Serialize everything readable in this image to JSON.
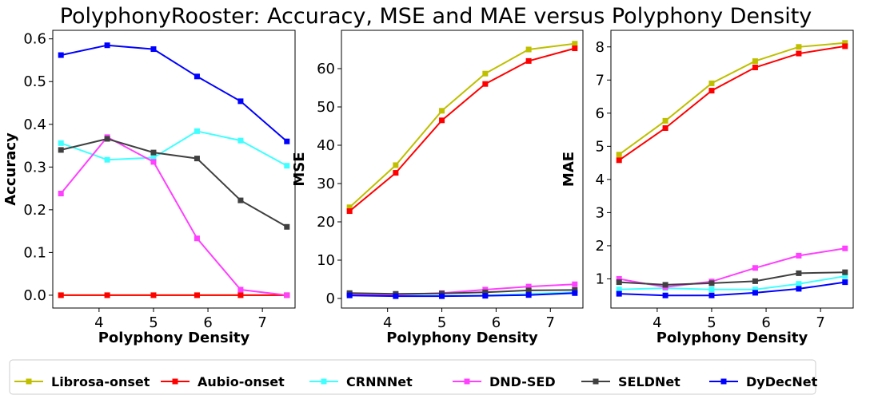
{
  "title": "PolyphonyRooster: Accuracy, MSE and MAE versus Polyphony Density",
  "legend": {
    "placement": "bottom",
    "entries": [
      "Librosa-onset",
      "Aubio-onset",
      "CRNNNet",
      "DND-SED",
      "SELDNet",
      "DyDecNet"
    ]
  },
  "series_colors": {
    "Librosa-onset": "#bfbf00",
    "Aubio-onset": "#ff0000",
    "CRNNNet": "#40ffff",
    "DND-SED": "#ff40ff",
    "SELDNet": "#404040",
    "DyDecNet": "#0000ff"
  },
  "chart_data": [
    {
      "type": "line",
      "xlabel": "Polyphony Density",
      "ylabel": "Accuracy",
      "xlim": [
        3.15,
        7.6
      ],
      "ylim": [
        -0.03,
        0.62
      ],
      "xticks": [
        4,
        5,
        6,
        7
      ],
      "yticks": [
        0.0,
        0.1,
        0.2,
        0.3,
        0.4,
        0.5,
        0.6
      ],
      "ytick_labels": [
        "0.0",
        "0.1",
        "0.2",
        "0.3",
        "0.4",
        "0.5",
        "0.6"
      ],
      "grid": false,
      "x": [
        3.3,
        4.15,
        5.0,
        5.8,
        6.6,
        7.45
      ],
      "series": [
        {
          "name": "Librosa-onset",
          "values": [
            0.0,
            0.0,
            0.0,
            0.0,
            0.0,
            0.0
          ]
        },
        {
          "name": "Aubio-onset",
          "values": [
            0.0,
            0.0,
            0.0,
            0.0,
            0.0,
            0.0
          ]
        },
        {
          "name": "CRNNNet",
          "values": [
            0.356,
            0.317,
            0.322,
            0.384,
            0.362,
            0.303
          ]
        },
        {
          "name": "DND-SED",
          "values": [
            0.238,
            0.37,
            0.312,
            0.133,
            0.013,
            0.0
          ]
        },
        {
          "name": "SELDNet",
          "values": [
            0.34,
            0.366,
            0.334,
            0.32,
            0.222,
            0.16
          ]
        },
        {
          "name": "DyDecNet",
          "values": [
            0.562,
            0.585,
            0.576,
            0.512,
            0.454,
            0.36
          ]
        }
      ]
    },
    {
      "type": "line",
      "xlabel": "Polyphony Density",
      "ylabel": "MSE",
      "xlim": [
        3.15,
        7.6
      ],
      "ylim": [
        -2.5,
        70.0
      ],
      "xticks": [
        4,
        5,
        6,
        7
      ],
      "yticks": [
        0,
        10,
        20,
        30,
        40,
        50,
        60
      ],
      "ytick_labels": [
        "0",
        "10",
        "20",
        "30",
        "40",
        "50",
        "60"
      ],
      "grid": false,
      "x": [
        3.3,
        4.15,
        5.0,
        5.8,
        6.6,
        7.45
      ],
      "series": [
        {
          "name": "Librosa-onset",
          "values": [
            23.8,
            34.8,
            49.0,
            58.7,
            65.0,
            66.5
          ]
        },
        {
          "name": "Aubio-onset",
          "values": [
            22.8,
            32.8,
            46.5,
            56.0,
            62.0,
            65.3
          ]
        },
        {
          "name": "CRNNNet",
          "values": [
            0.9,
            0.7,
            0.7,
            0.8,
            1.2,
            1.6
          ]
        },
        {
          "name": "DND-SED",
          "values": [
            1.2,
            1.0,
            1.4,
            2.3,
            3.1,
            3.7
          ]
        },
        {
          "name": "SELDNet",
          "values": [
            1.4,
            1.2,
            1.3,
            1.6,
            2.1,
            2.2
          ]
        },
        {
          "name": "DyDecNet",
          "values": [
            0.8,
            0.6,
            0.6,
            0.7,
            0.9,
            1.4
          ]
        }
      ]
    },
    {
      "type": "line",
      "xlabel": "Polyphony Density",
      "ylabel": "MAE",
      "xlim": [
        3.15,
        7.6
      ],
      "ylim": [
        0.12,
        8.5
      ],
      "xticks": [
        4,
        5,
        6,
        7
      ],
      "yticks": [
        1,
        2,
        3,
        4,
        5,
        6,
        7,
        8
      ],
      "ytick_labels": [
        "1",
        "2",
        "3",
        "4",
        "5",
        "6",
        "7",
        "8"
      ],
      "grid": false,
      "x": [
        3.3,
        4.15,
        5.0,
        5.8,
        6.6,
        7.45
      ],
      "series": [
        {
          "name": "Librosa-onset",
          "values": [
            4.75,
            5.77,
            6.9,
            7.57,
            8.0,
            8.12
          ]
        },
        {
          "name": "Aubio-onset",
          "values": [
            4.58,
            5.55,
            6.68,
            7.38,
            7.8,
            8.02
          ]
        },
        {
          "name": "CRNNNet",
          "values": [
            0.68,
            0.72,
            0.68,
            0.68,
            0.85,
            1.08
          ]
        },
        {
          "name": "DND-SED",
          "values": [
            1.0,
            0.75,
            0.92,
            1.33,
            1.7,
            1.92
          ]
        },
        {
          "name": "SELDNet",
          "values": [
            0.9,
            0.82,
            0.87,
            0.93,
            1.17,
            1.2
          ]
        },
        {
          "name": "DyDecNet",
          "values": [
            0.55,
            0.5,
            0.5,
            0.58,
            0.7,
            0.9
          ]
        }
      ]
    }
  ]
}
